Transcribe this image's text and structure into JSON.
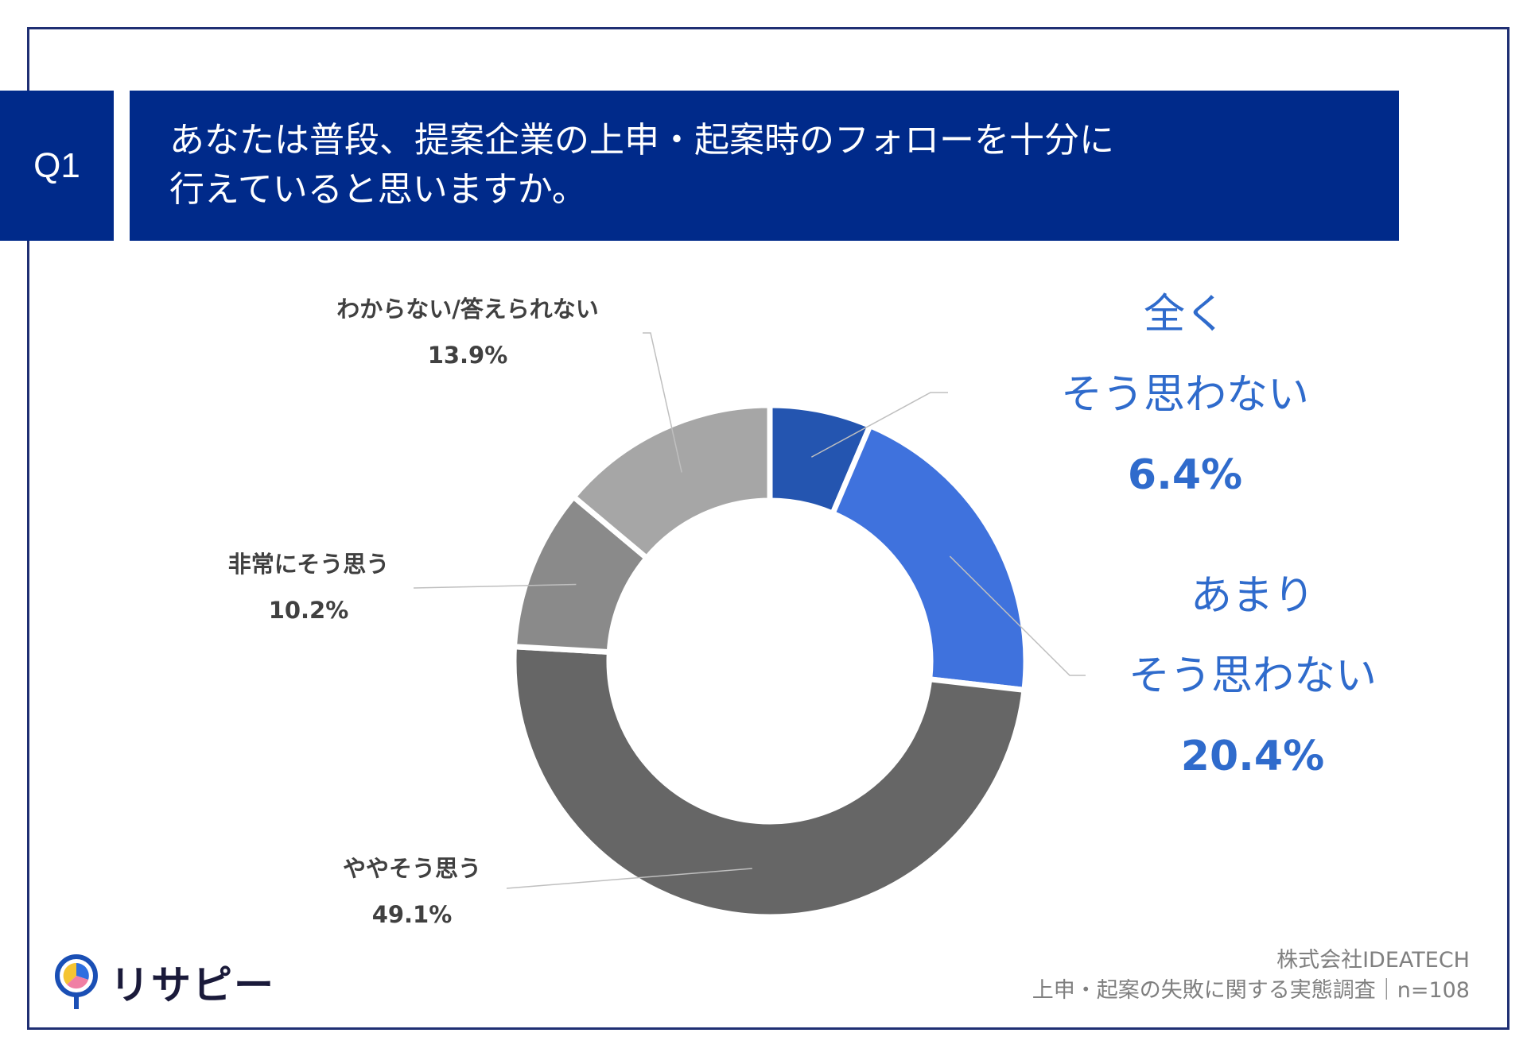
{
  "question": {
    "tag": "Q1",
    "title_line1": "あなたは普段、提案企業の上申・起案時のフォローを十分に",
    "title_line2": "行えていると思いますか。"
  },
  "chart_data": {
    "type": "pie",
    "donut": true,
    "slices": [
      {
        "label_line1": "全く",
        "label_line2": "そう思わない",
        "value": 6.4,
        "display": "6.4%",
        "color": "#2455b0"
      },
      {
        "label_line1": "あまり",
        "label_line2": "そう思わない",
        "value": 20.4,
        "display": "20.4%",
        "color": "#3f72dd"
      },
      {
        "label": "ややそう思う",
        "value": 49.1,
        "display": "49.1%",
        "color": "#666666"
      },
      {
        "label": "非常にそう思う",
        "value": 10.2,
        "display": "10.2%",
        "color": "#8a8a8a"
      },
      {
        "label": "わからない/答えられない",
        "value": 13.9,
        "display": "13.9%",
        "color": "#a6a6a6"
      }
    ]
  },
  "source": {
    "line1": "株式会社IDEATECH",
    "line2": "上申・起案の失敗に関する実態調査｜n=108"
  },
  "logo": {
    "text": "リサピー"
  }
}
